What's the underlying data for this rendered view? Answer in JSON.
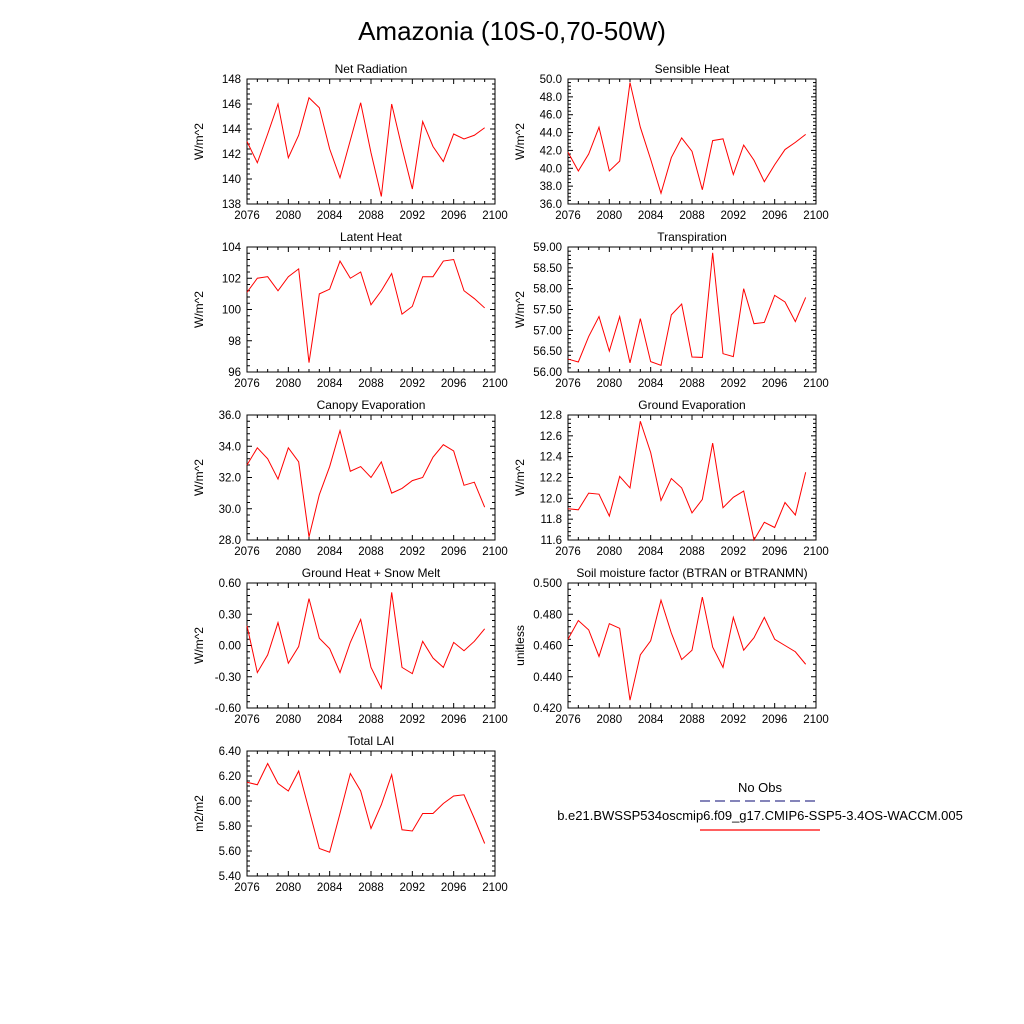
{
  "page_title": "Amazonia (10S-0,70-50W)",
  "legend": {
    "entries": [
      {
        "label": "No Obs",
        "color": "#3b3b8f",
        "dash": true
      },
      {
        "label": "b.e21.BWSSP534oscmip6.f09_g17.CMIP6-SSP5-3.4OS-WACCM.005",
        "color": "#ff0000",
        "dash": false
      }
    ]
  },
  "chart_data": [
    {
      "type": "line",
      "title": "Net Radiation",
      "ylabel": "W/m^2",
      "xlim": [
        2076,
        2100
      ],
      "ylim": [
        138,
        148
      ],
      "xticks": [
        "2076",
        "2080",
        "2084",
        "2088",
        "2092",
        "2096",
        "2100"
      ],
      "yticks": [
        "138",
        "140",
        "142",
        "144",
        "146",
        "148"
      ],
      "series": [
        {
          "color": "#ff0000",
          "x": [
            2076,
            2077,
            2078,
            2079,
            2080,
            2081,
            2082,
            2083,
            2084,
            2085,
            2086,
            2087,
            2088,
            2089,
            2090,
            2091,
            2092,
            2093,
            2094,
            2095,
            2096,
            2097,
            2098,
            2099
          ],
          "values": [
            143.0,
            141.3,
            143.6,
            146.0,
            141.7,
            143.5,
            146.5,
            145.7,
            142.4,
            140.1,
            143.1,
            146.1,
            142.1,
            138.6,
            146.0,
            142.5,
            139.2,
            144.6,
            142.6,
            141.4,
            143.6,
            143.2,
            143.5,
            144.1
          ]
        }
      ]
    },
    {
      "type": "line",
      "title": "Sensible Heat",
      "ylabel": "W/m^2",
      "xlim": [
        2076,
        2100
      ],
      "ylim": [
        36,
        50
      ],
      "xticks": [
        "2076",
        "2080",
        "2084",
        "2088",
        "2092",
        "2096",
        "2100"
      ],
      "yticks": [
        "36.0",
        "38.0",
        "40.0",
        "42.0",
        "44.0",
        "46.0",
        "48.0",
        "50.0"
      ],
      "series": [
        {
          "color": "#ff0000",
          "x": [
            2076,
            2077,
            2078,
            2079,
            2080,
            2081,
            2082,
            2083,
            2084,
            2085,
            2086,
            2087,
            2088,
            2089,
            2090,
            2091,
            2092,
            2093,
            2094,
            2095,
            2096,
            2097,
            2098,
            2099
          ],
          "values": [
            41.8,
            39.7,
            41.6,
            44.6,
            39.7,
            40.8,
            49.6,
            44.6,
            41.0,
            37.2,
            41.2,
            43.4,
            41.9,
            37.6,
            43.1,
            43.3,
            39.3,
            42.6,
            40.9,
            38.5,
            40.4,
            42.1,
            42.9,
            43.8
          ]
        }
      ]
    },
    {
      "type": "line",
      "title": "Latent Heat",
      "ylabel": "W/m^2",
      "xlim": [
        2076,
        2100
      ],
      "ylim": [
        96,
        104
      ],
      "xticks": [
        "2076",
        "2080",
        "2084",
        "2088",
        "2092",
        "2096",
        "2100"
      ],
      "yticks": [
        "96",
        "98",
        "100",
        "102",
        "104"
      ],
      "series": [
        {
          "color": "#ff0000",
          "x": [
            2076,
            2077,
            2078,
            2079,
            2080,
            2081,
            2082,
            2083,
            2084,
            2085,
            2086,
            2087,
            2088,
            2089,
            2090,
            2091,
            2092,
            2093,
            2094,
            2095,
            2096,
            2097,
            2098,
            2099
          ],
          "values": [
            101.1,
            102.0,
            102.1,
            101.2,
            102.1,
            102.6,
            96.6,
            101.0,
            101.3,
            103.1,
            102.0,
            102.4,
            100.3,
            101.2,
            102.3,
            99.7,
            100.2,
            102.1,
            102.1,
            103.1,
            103.2,
            101.2,
            100.7,
            100.1
          ]
        }
      ]
    },
    {
      "type": "line",
      "title": "Transpiration",
      "ylabel": "W/m^2",
      "xlim": [
        2076,
        2100
      ],
      "ylim": [
        56,
        59
      ],
      "xticks": [
        "2076",
        "2080",
        "2084",
        "2088",
        "2092",
        "2096",
        "2100"
      ],
      "yticks": [
        "56.00",
        "56.50",
        "57.00",
        "57.50",
        "58.00",
        "58.50",
        "59.00"
      ],
      "series": [
        {
          "color": "#ff0000",
          "x": [
            2076,
            2077,
            2078,
            2079,
            2080,
            2081,
            2082,
            2083,
            2084,
            2085,
            2086,
            2087,
            2088,
            2089,
            2090,
            2091,
            2092,
            2093,
            2094,
            2095,
            2096,
            2097,
            2098,
            2099
          ],
          "values": [
            56.31,
            56.24,
            56.85,
            57.33,
            56.5,
            57.33,
            56.22,
            57.28,
            56.25,
            56.16,
            57.37,
            57.63,
            56.36,
            56.35,
            58.86,
            56.44,
            56.37,
            58.0,
            57.16,
            57.19,
            57.84,
            57.68,
            57.21,
            57.79
          ]
        }
      ]
    },
    {
      "type": "line",
      "title": "Canopy Evaporation",
      "ylabel": "W/m^2",
      "xlim": [
        2076,
        2100
      ],
      "ylim": [
        28,
        36
      ],
      "xticks": [
        "2076",
        "2080",
        "2084",
        "2088",
        "2092",
        "2096",
        "2100"
      ],
      "yticks": [
        "28.0",
        "30.0",
        "32.0",
        "34.0",
        "36.0"
      ],
      "series": [
        {
          "color": "#ff0000",
          "x": [
            2076,
            2077,
            2078,
            2079,
            2080,
            2081,
            2082,
            2083,
            2084,
            2085,
            2086,
            2087,
            2088,
            2089,
            2090,
            2091,
            2092,
            2093,
            2094,
            2095,
            2096,
            2097,
            2098,
            2099
          ],
          "values": [
            32.8,
            33.9,
            33.2,
            31.9,
            33.9,
            33.0,
            28.2,
            30.9,
            32.7,
            35.0,
            32.4,
            32.7,
            32.0,
            33.0,
            31.0,
            31.3,
            31.8,
            32.0,
            33.3,
            34.1,
            33.7,
            31.5,
            31.7,
            30.1
          ]
        }
      ]
    },
    {
      "type": "line",
      "title": "Ground Evaporation",
      "ylabel": "W/m^2",
      "xlim": [
        2076,
        2100
      ],
      "ylim": [
        11.6,
        12.8
      ],
      "xticks": [
        "2076",
        "2080",
        "2084",
        "2088",
        "2092",
        "2096",
        "2100"
      ],
      "yticks": [
        "11.6",
        "11.8",
        "12.0",
        "12.2",
        "12.4",
        "12.6",
        "12.8"
      ],
      "series": [
        {
          "color": "#ff0000",
          "x": [
            2076,
            2077,
            2078,
            2079,
            2080,
            2081,
            2082,
            2083,
            2084,
            2085,
            2086,
            2087,
            2088,
            2089,
            2090,
            2091,
            2092,
            2093,
            2094,
            2095,
            2096,
            2097,
            2098,
            2099
          ],
          "values": [
            11.9,
            11.89,
            12.05,
            12.04,
            11.83,
            12.21,
            12.1,
            12.74,
            12.44,
            11.98,
            12.19,
            12.1,
            11.86,
            11.99,
            12.53,
            11.91,
            12.01,
            12.07,
            11.6,
            11.77,
            11.72,
            11.96,
            11.84,
            12.25
          ]
        }
      ]
    },
    {
      "type": "line",
      "title": "Ground Heat + Snow Melt",
      "ylabel": "W/m^2",
      "xlim": [
        2076,
        2100
      ],
      "ylim": [
        -0.6,
        0.6
      ],
      "xticks": [
        "2076",
        "2080",
        "2084",
        "2088",
        "2092",
        "2096",
        "2100"
      ],
      "yticks": [
        "-0.60",
        "-0.30",
        "0.00",
        "0.30",
        "0.60"
      ],
      "series": [
        {
          "color": "#ff0000",
          "x": [
            2076,
            2077,
            2078,
            2079,
            2080,
            2081,
            2082,
            2083,
            2084,
            2085,
            2086,
            2087,
            2088,
            2089,
            2090,
            2091,
            2092,
            2093,
            2094,
            2095,
            2096,
            2097,
            2098,
            2099
          ],
          "values": [
            0.19,
            -0.26,
            -0.09,
            0.22,
            -0.17,
            -0.01,
            0.45,
            0.07,
            -0.03,
            -0.26,
            0.03,
            0.25,
            -0.21,
            -0.41,
            0.51,
            -0.21,
            -0.27,
            0.04,
            -0.12,
            -0.21,
            0.03,
            -0.05,
            0.04,
            0.16
          ]
        }
      ]
    },
    {
      "type": "line",
      "title": "Soil moisture factor (BTRAN or BTRANMN)",
      "ylabel": "unitless",
      "xlim": [
        2076,
        2100
      ],
      "ylim": [
        0.42,
        0.5
      ],
      "xticks": [
        "2076",
        "2080",
        "2084",
        "2088",
        "2092",
        "2096",
        "2100"
      ],
      "yticks": [
        "0.420",
        "0.440",
        "0.460",
        "0.480",
        "0.500"
      ],
      "series": [
        {
          "color": "#ff0000",
          "x": [
            2076,
            2077,
            2078,
            2079,
            2080,
            2081,
            2082,
            2083,
            2084,
            2085,
            2086,
            2087,
            2088,
            2089,
            2090,
            2091,
            2092,
            2093,
            2094,
            2095,
            2096,
            2097,
            2098,
            2099
          ],
          "values": [
            0.464,
            0.476,
            0.47,
            0.453,
            0.474,
            0.471,
            0.425,
            0.454,
            0.463,
            0.489,
            0.468,
            0.451,
            0.457,
            0.491,
            0.459,
            0.446,
            0.478,
            0.457,
            0.465,
            0.478,
            0.464,
            0.46,
            0.456,
            0.448
          ]
        }
      ]
    },
    {
      "type": "line",
      "title": "Total LAI",
      "ylabel": "m2/m2",
      "xlim": [
        2076,
        2100
      ],
      "ylim": [
        5.4,
        6.4
      ],
      "xticks": [
        "2076",
        "2080",
        "2084",
        "2088",
        "2092",
        "2096",
        "2100"
      ],
      "yticks": [
        "5.40",
        "5.60",
        "5.80",
        "6.00",
        "6.20",
        "6.40"
      ],
      "series": [
        {
          "color": "#ff0000",
          "x": [
            2076,
            2077,
            2078,
            2079,
            2080,
            2081,
            2082,
            2083,
            2084,
            2085,
            2086,
            2087,
            2088,
            2089,
            2090,
            2091,
            2092,
            2093,
            2094,
            2095,
            2096,
            2097,
            2098,
            2099
          ],
          "values": [
            6.15,
            6.13,
            6.3,
            6.14,
            6.08,
            6.24,
            5.93,
            5.62,
            5.59,
            5.9,
            6.22,
            6.08,
            5.78,
            5.97,
            6.21,
            5.77,
            5.76,
            5.9,
            5.9,
            5.98,
            6.04,
            6.05,
            5.86,
            5.66
          ]
        }
      ]
    }
  ]
}
